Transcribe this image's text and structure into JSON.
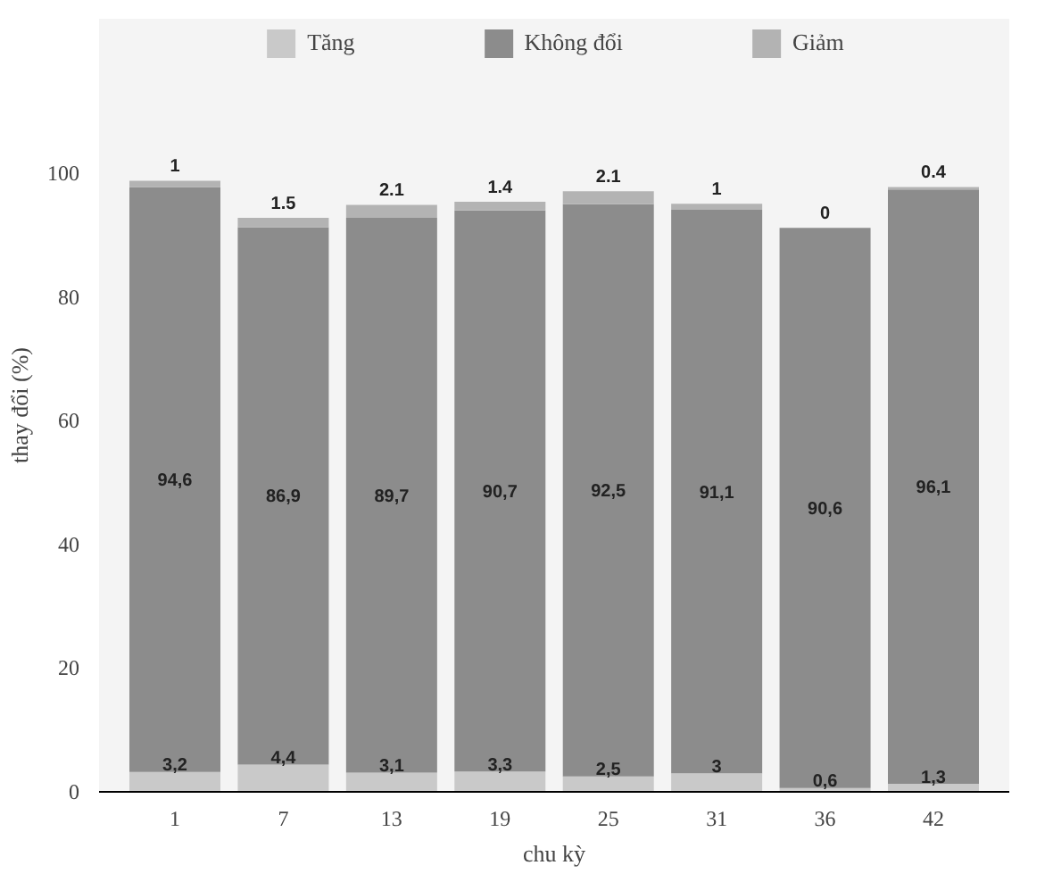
{
  "chart_data": {
    "type": "bar",
    "stacked": true,
    "xlabel": "chu kỳ",
    "ylabel": "thay đổi (%)",
    "categories": [
      "1",
      "7",
      "13",
      "19",
      "25",
      "31",
      "36",
      "42"
    ],
    "series": [
      {
        "name": "Tăng",
        "color": "#c9c9c9",
        "values": [
          3.2,
          4.4,
          3.1,
          3.3,
          2.5,
          3,
          0.6,
          1.3
        ],
        "value_labels": [
          "3,2",
          "4,4",
          "3,1",
          "3,3",
          "2,5",
          "3",
          "0,6",
          "1,3"
        ]
      },
      {
        "name": "Không đổi",
        "color": "#8c8c8c",
        "values": [
          94.6,
          86.9,
          89.7,
          90.7,
          92.5,
          91.1,
          90.6,
          96.1
        ],
        "value_labels": [
          "94,6",
          "86,9",
          "89,7",
          "90,7",
          "92,5",
          "91,1",
          "90,6",
          "96,1"
        ]
      },
      {
        "name": "Giảm",
        "color": "#b3b3b3",
        "values": [
          1,
          1.5,
          2.1,
          1.4,
          2.1,
          1,
          0,
          0.4
        ],
        "value_labels": [
          "1",
          "1.5",
          "2.1",
          "1.4",
          "2.1",
          "1",
          "0",
          "0.4"
        ]
      }
    ],
    "ylim": [
      0,
      125
    ],
    "yticks": [
      0,
      20,
      40,
      60,
      80,
      100
    ],
    "grid": false,
    "legend": "top"
  }
}
